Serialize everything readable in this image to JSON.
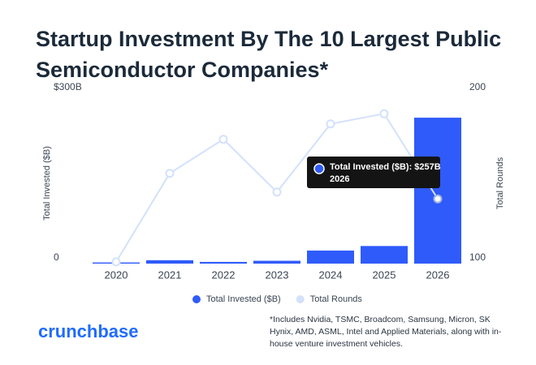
{
  "chart_data": {
    "type": "bar-line",
    "title": "Startup Investment By The 10 Largest Public Semiconductor Companies*",
    "categories": [
      "2020",
      "2021",
      "2022",
      "2023",
      "2024",
      "2025",
      "2026"
    ],
    "series": [
      {
        "name": "Total Invested ($B)",
        "color": "#2f5bfa",
        "type": "bar",
        "values": [
          2,
          6,
          3,
          5,
          23,
          31,
          257
        ]
      },
      {
        "name": "Total Rounds",
        "color": "#d3e1fb",
        "type": "line",
        "axis": "y2",
        "values": [
          101,
          153,
          173,
          142,
          182,
          188,
          138
        ]
      }
    ],
    "ylabel": "Total Invested ($B)",
    "y2label": "Total Rounds",
    "ylim": [
      0,
      300
    ],
    "yticks": [
      0,
      {
        "value": 300,
        "label": "$300B"
      }
    ],
    "y2lim": [
      100,
      200
    ],
    "y2ticks": [
      100,
      200
    ],
    "grid": false,
    "legend": "bottom",
    "tooltip": {
      "text": "Total Invested ($B): $257B",
      "category": "2026"
    },
    "footnote": "*Includes Nvidia, TSMC, Broadcom, Samsung, Micron, SK Hynix, AMD, ASML, Intel and Applied Materials, along with in-house venture investment vehicles.",
    "brand": "crunchbase"
  }
}
